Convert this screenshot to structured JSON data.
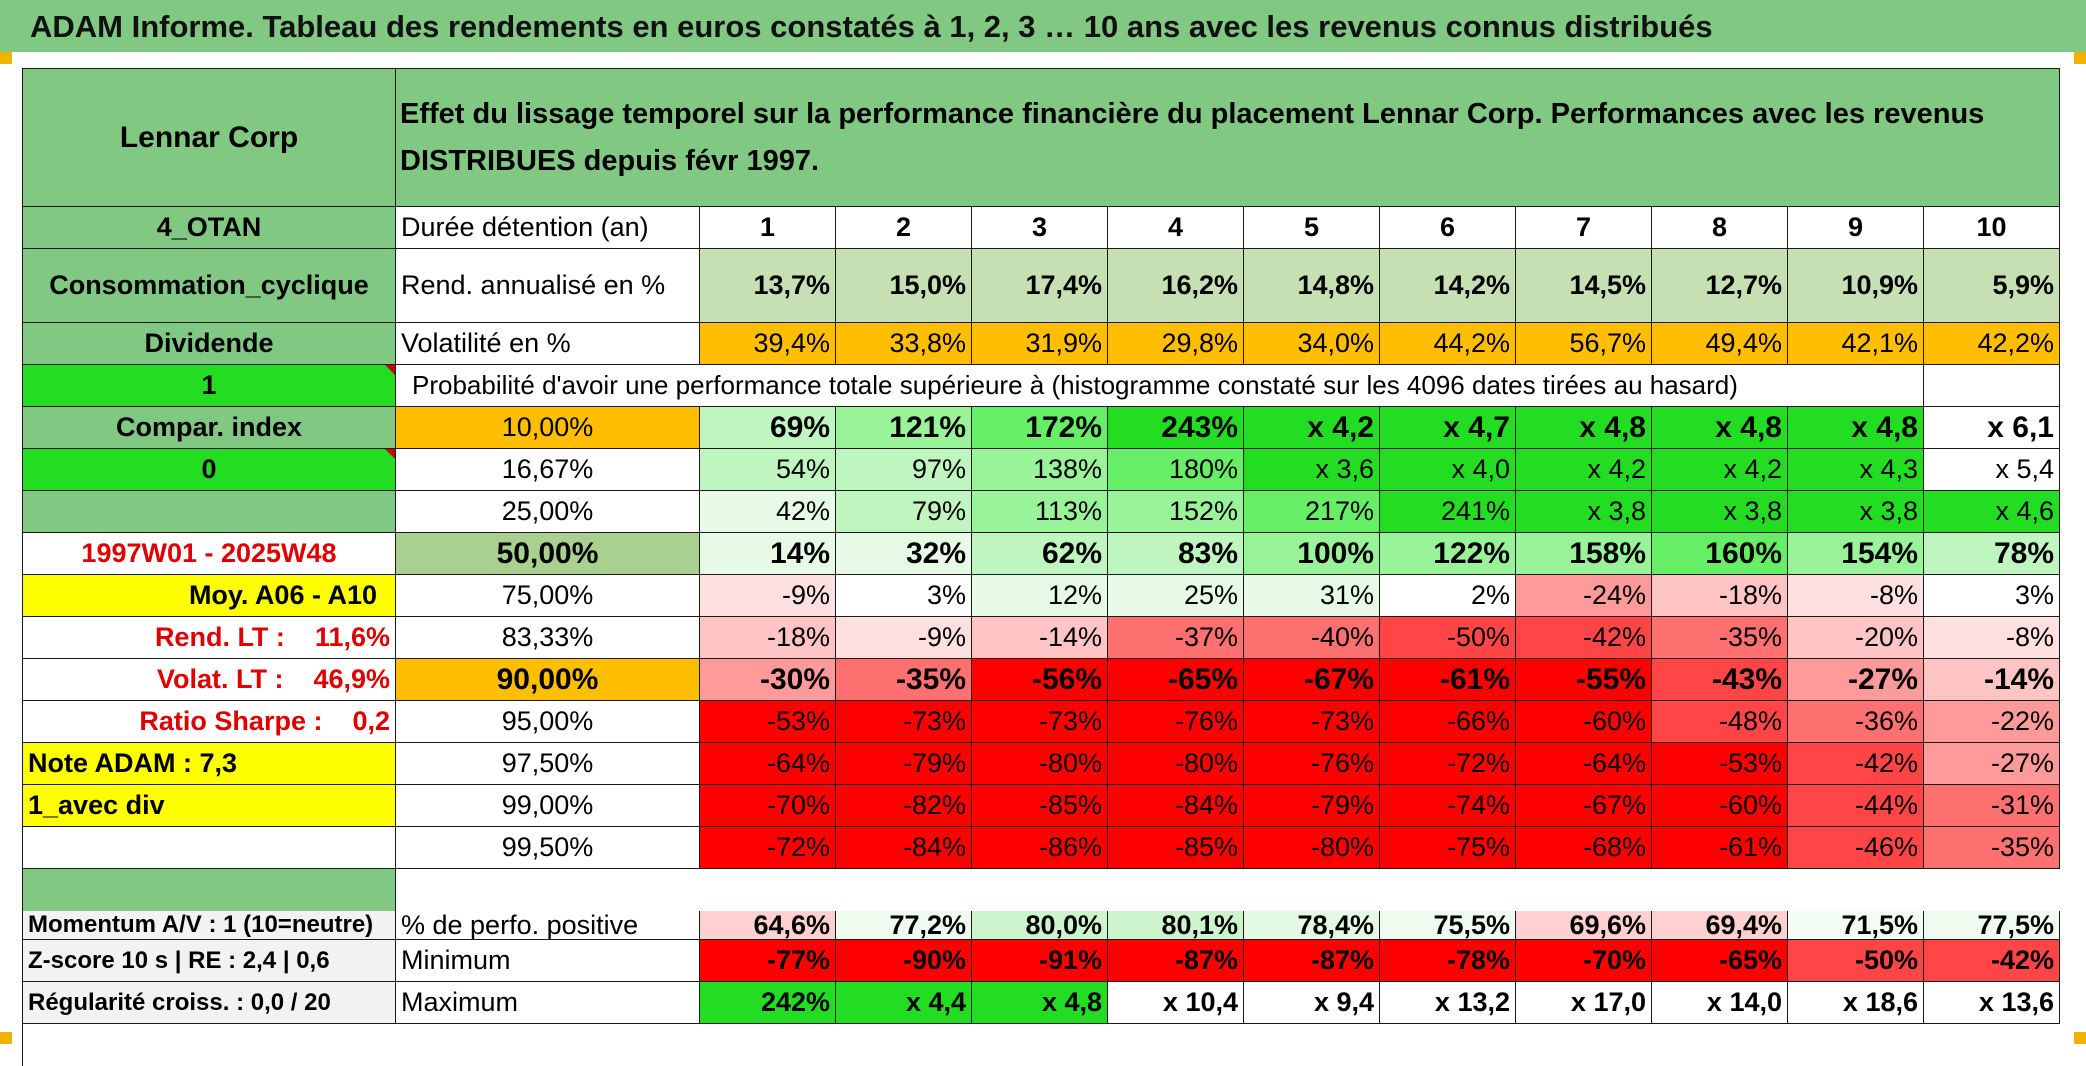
{
  "banner_title": "ADAM Informe. Tableau des rendements en euros constatés à 1, 2, 3 … 10 ans avec les revenus connus distribués",
  "header": {
    "asset_name": "Lennar Corp",
    "description": "Effet du lissage temporel sur la performance financière du placement Lennar Corp. Performances avec les revenus DISTRIBUES depuis févr 1997."
  },
  "sidebar": {
    "category1": "4_OTAN",
    "category2": "Consommation_cyclique",
    "category3": "Dividende",
    "flag1": "1",
    "compar_label": "Compar. index",
    "flag2": "0",
    "blank": "",
    "period": "1997W01 - 2025W48",
    "moy": "Moy. A06 - A10",
    "rend_lt": "Rend. LT :    11,6%",
    "volat_lt": "Volat. LT :    46,9%",
    "sharpe": "Ratio Sharpe :    0,2",
    "note": "Note ADAM : 7,3",
    "avec_div": "1_avec div",
    "momentum": "Momentum A/V : 1 (10=neutre)",
    "zscore": "Z-score 10 s | RE : 2,4 | 0,6",
    "regularite": "Régularité croiss. : 0,0 / 20"
  },
  "labels": {
    "duration": "Durée détention (an)",
    "rend": "Rend. annualisé en %",
    "vol": "Volatilité en %",
    "proba": "Probabilité d'avoir une performance totale supérieure à (histogramme constaté sur les 4096 dates tirées au hasard)",
    "pos": "% de perfo. positive",
    "min": "Minimum",
    "max": "Maximum"
  },
  "years": [
    "1",
    "2",
    "3",
    "4",
    "5",
    "6",
    "7",
    "8",
    "9",
    "10"
  ],
  "rend_values": [
    "13,7%",
    "15,0%",
    "17,4%",
    "16,2%",
    "14,8%",
    "14,2%",
    "14,5%",
    "12,7%",
    "10,9%",
    "5,9%"
  ],
  "vol_values": [
    "39,4%",
    "33,8%",
    "31,9%",
    "29,8%",
    "34,0%",
    "44,2%",
    "56,7%",
    "49,4%",
    "42,1%",
    "42,2%"
  ],
  "quantiles": [
    {
      "label": "10,00%",
      "values": [
        "69%",
        "121%",
        "172%",
        "243%",
        "x 4,2",
        "x 4,7",
        "x 4,8",
        "x 4,8",
        "x 4,8",
        "x 6,1"
      ]
    },
    {
      "label": "16,67%",
      "values": [
        "54%",
        "97%",
        "138%",
        "180%",
        "x 3,6",
        "x 4,0",
        "x 4,2",
        "x 4,2",
        "x 4,3",
        "x 5,4"
      ]
    },
    {
      "label": "25,00%",
      "values": [
        "42%",
        "79%",
        "113%",
        "152%",
        "217%",
        "241%",
        "x 3,8",
        "x 3,8",
        "x 3,8",
        "x 4,6"
      ]
    },
    {
      "label": "50,00%",
      "values": [
        "14%",
        "32%",
        "62%",
        "83%",
        "100%",
        "122%",
        "158%",
        "160%",
        "154%",
        "78%"
      ]
    },
    {
      "label": "75,00%",
      "values": [
        "-9%",
        "3%",
        "12%",
        "25%",
        "31%",
        "2%",
        "-24%",
        "-18%",
        "-8%",
        "3%"
      ]
    },
    {
      "label": "83,33%",
      "values": [
        "-18%",
        "-9%",
        "-14%",
        "-37%",
        "-40%",
        "-50%",
        "-42%",
        "-35%",
        "-20%",
        "-8%"
      ]
    },
    {
      "label": "90,00%",
      "values": [
        "-30%",
        "-35%",
        "-56%",
        "-65%",
        "-67%",
        "-61%",
        "-55%",
        "-43%",
        "-27%",
        "-14%"
      ]
    },
    {
      "label": "95,00%",
      "values": [
        "-53%",
        "-73%",
        "-73%",
        "-76%",
        "-73%",
        "-66%",
        "-60%",
        "-48%",
        "-36%",
        "-22%"
      ]
    },
    {
      "label": "97,50%",
      "values": [
        "-64%",
        "-79%",
        "-80%",
        "-80%",
        "-76%",
        "-72%",
        "-64%",
        "-53%",
        "-42%",
        "-27%"
      ]
    },
    {
      "label": "99,00%",
      "values": [
        "-70%",
        "-82%",
        "-85%",
        "-84%",
        "-79%",
        "-74%",
        "-67%",
        "-60%",
        "-44%",
        "-31%"
      ]
    },
    {
      "label": "99,50%",
      "values": [
        "-72%",
        "-84%",
        "-86%",
        "-85%",
        "-80%",
        "-75%",
        "-68%",
        "-61%",
        "-46%",
        "-35%"
      ]
    }
  ],
  "pos_values": [
    "64,6%",
    "77,2%",
    "80,0%",
    "80,1%",
    "78,4%",
    "75,5%",
    "69,6%",
    "69,4%",
    "71,5%",
    "77,5%"
  ],
  "min_values": [
    "-77%",
    "-90%",
    "-91%",
    "-87%",
    "-87%",
    "-78%",
    "-70%",
    "-65%",
    "-50%",
    "-42%"
  ],
  "max_values": [
    "242%",
    "x 4,4",
    "x 4,8",
    "x 10,4",
    "x 9,4",
    "x 13,2",
    "x 17,0",
    "x 14,0",
    "x 18,6",
    "x 13,6"
  ],
  "colors": {
    "header_green": "#81c883",
    "bright_green": "#22dd22",
    "orange": "#ffbf00",
    "yellow": "#ffff00",
    "red_text": "#e00000",
    "strong_red": "#ff0000"
  }
}
